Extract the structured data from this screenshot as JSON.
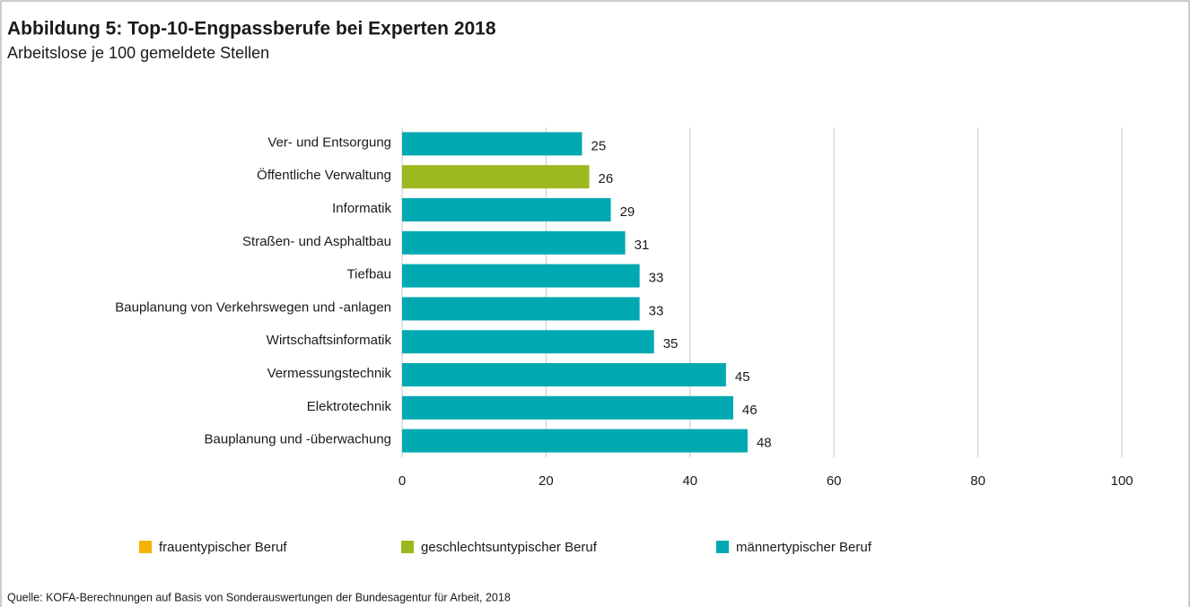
{
  "chart_data": {
    "type": "bar",
    "orientation": "horizontal",
    "title": "Abbildung 5: Top-10-Engpassberufe bei Experten 2018",
    "subtitle": "Arbeitslose je 100 gemeldete Stellen",
    "source": "Quelle: KOFA-Berechnungen auf Basis von Sonderauswertungen der Bundesagentur für Arbeit, 2018",
    "categories": [
      "Ver- und Entsorgung",
      "Öffentliche Verwaltung",
      "Informatik",
      "Straßen- und Asphaltbau",
      "Tiefbau",
      "Bauplanung von Verkehrswegen und -anlagen",
      "Wirtschaftsinformatik",
      "Vermessungstechnik",
      "Elektrotechnik",
      "Bauplanung und -überwachung"
    ],
    "values": [
      25,
      26,
      29,
      31,
      33,
      33,
      35,
      45,
      46,
      48
    ],
    "colors": [
      "#00a9b1",
      "#9bb81e",
      "#00a9b1",
      "#00a9b1",
      "#00a9b1",
      "#00a9b1",
      "#00a9b1",
      "#00a9b1",
      "#00a9b1",
      "#00a9b1"
    ],
    "xlim": [
      0,
      100
    ],
    "xticks": [
      0,
      20,
      40,
      60,
      80,
      100
    ],
    "grid": true,
    "legend": [
      {
        "name": "frauentypischer Beruf",
        "color": "#f4b300"
      },
      {
        "name": "geschlechtsuntypischer Beruf",
        "color": "#9bb81e"
      },
      {
        "name": "männertypischer Beruf",
        "color": "#00a9b1"
      }
    ]
  }
}
